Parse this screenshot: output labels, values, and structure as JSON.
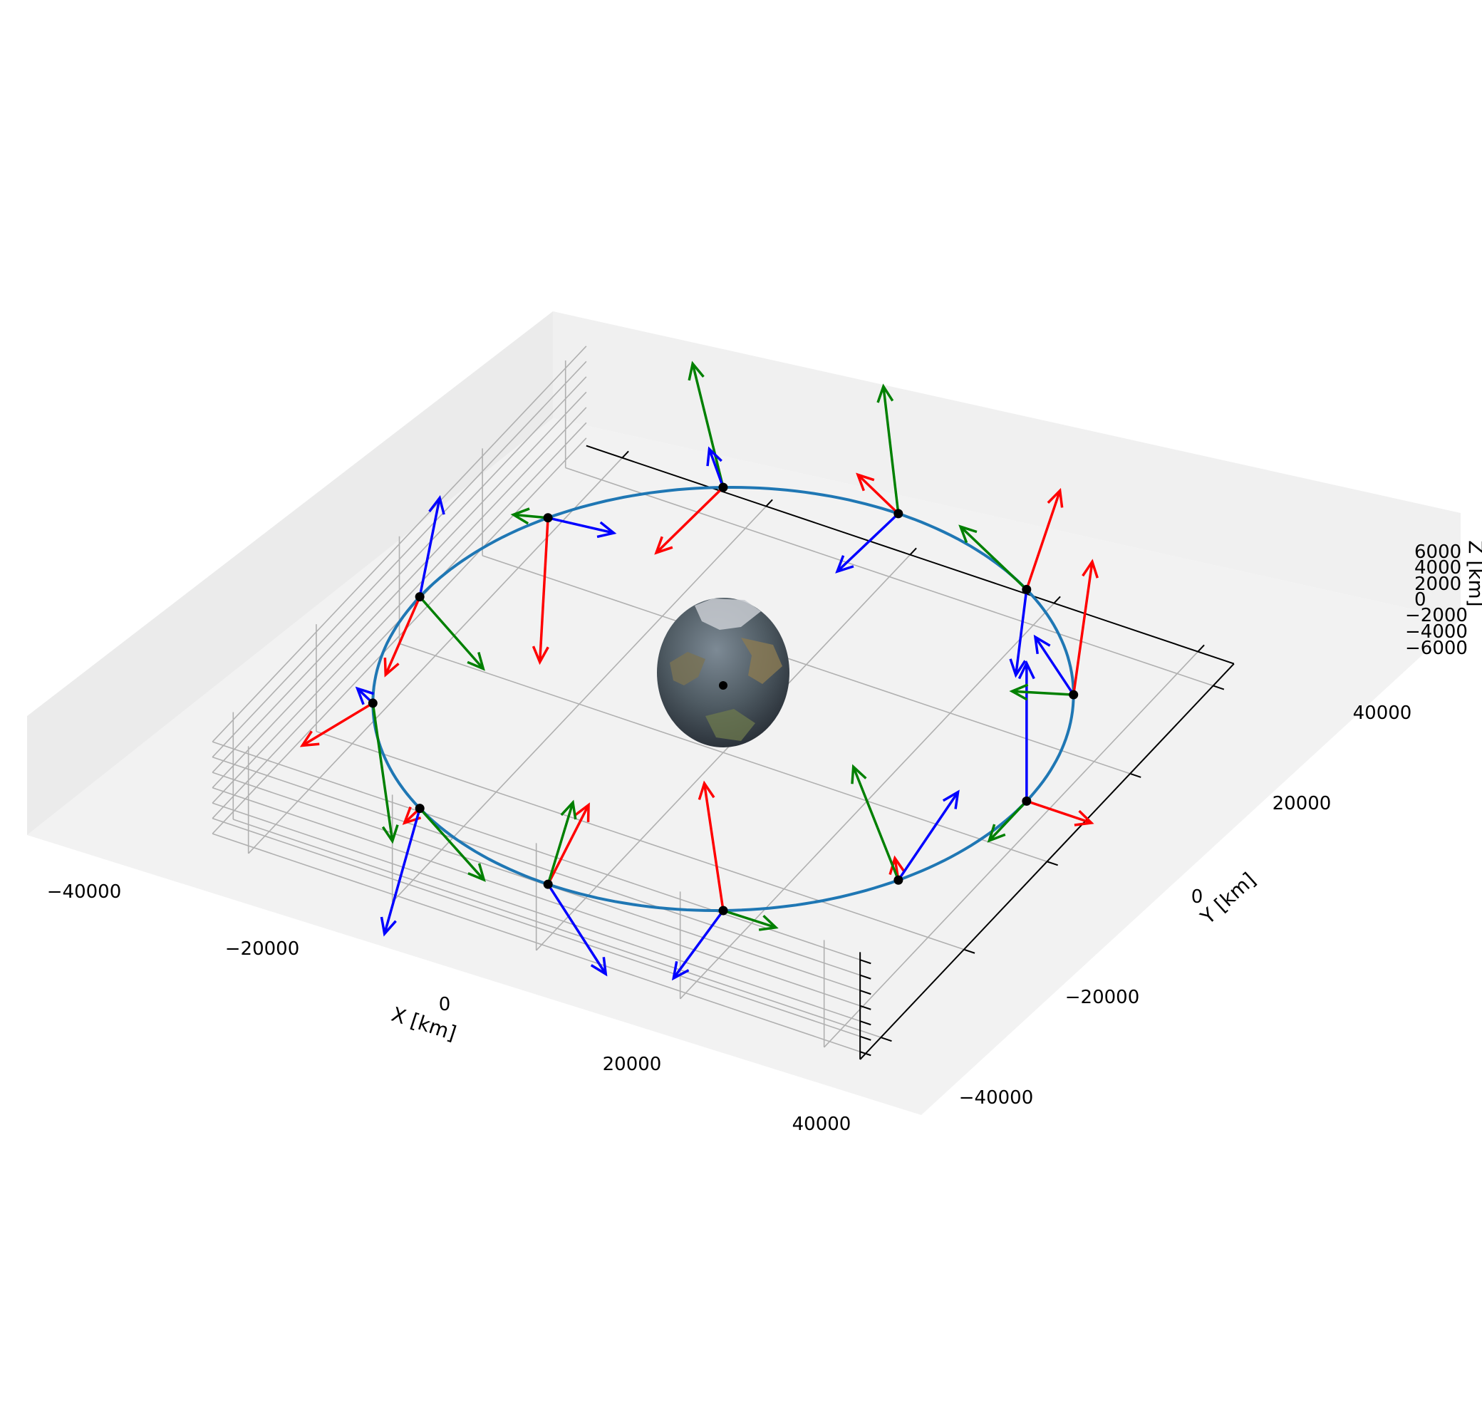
{
  "chart_data": {
    "type": "3d-line-quiver",
    "title": "",
    "xlabel": "X [km]",
    "ylabel": "Y [km]",
    "zlabel": "Z [km]",
    "xlim": [
      -45000,
      45000
    ],
    "ylim": [
      -45000,
      45000
    ],
    "zlim": [
      -7000,
      7000
    ],
    "x_ticks": [
      "−40000",
      "−20000",
      "0",
      "20000",
      "40000"
    ],
    "y_ticks": [
      "−40000",
      "−20000",
      "0",
      "20000",
      "40000"
    ],
    "z_ticks": [
      "−6000",
      "−4000",
      "−2000",
      "0",
      "2000",
      "4000",
      "6000"
    ],
    "grid": true,
    "central_body": {
      "name": "Earth",
      "radius_km": 6378
    },
    "orbit": {
      "name": "orbit",
      "radius_km": 42164,
      "z_km": 0,
      "color": "#1f77b4"
    },
    "satellites": {
      "count": 12,
      "color": "#000000",
      "angles_deg": [
        0,
        30,
        60,
        90,
        120,
        150,
        180,
        210,
        240,
        270,
        300,
        330
      ]
    },
    "frame_axis_colors": [
      "#ff0000",
      "#008000",
      "#0000ff"
    ]
  }
}
